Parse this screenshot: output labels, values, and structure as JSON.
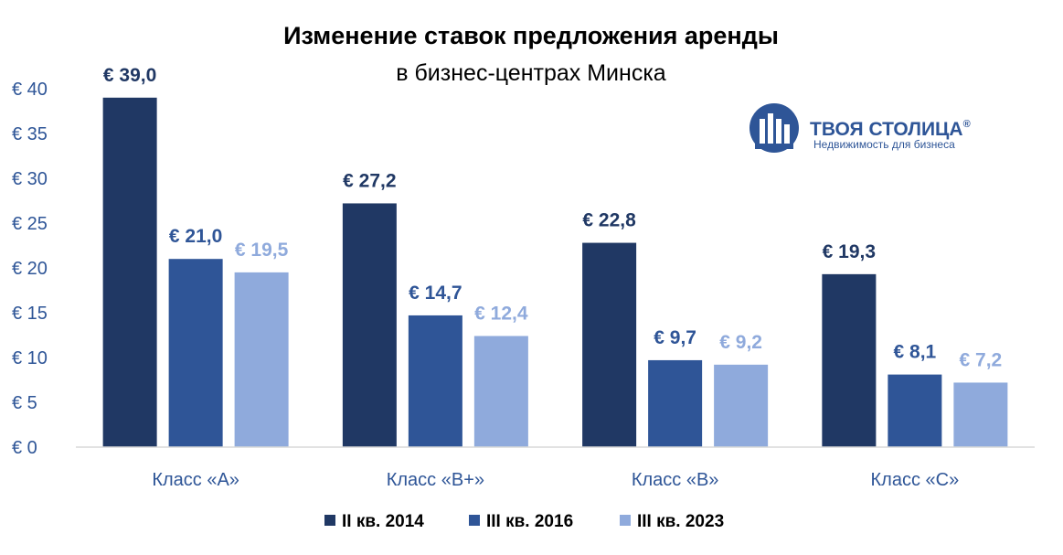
{
  "colors": {
    "series": [
      "#203864",
      "#2F5597",
      "#8FAADC"
    ],
    "labels": [
      "#203864",
      "#2F5597",
      "#8FAADC"
    ],
    "axis": "#D9D9D9",
    "tick_text": "#2E5597",
    "logo": "#2E5597"
  },
  "logo": {
    "name": "ТВОЯ СТОЛИЦА",
    "registered": "®",
    "tagline": "Недвижимость для бизнеса",
    "icon": "building-columns-icon"
  },
  "chart_data": {
    "type": "bar",
    "title": "Изменение ставок предложения аренды",
    "subtitle": "в бизнес-центрах Минска",
    "categories": [
      "Класс «А»",
      "Класс «В+»",
      "Класс «В»",
      "Класс «С»"
    ],
    "series": [
      {
        "name": "II кв. 2014",
        "values": [
          39.0,
          27.2,
          22.8,
          19.3
        ],
        "labels": [
          "€  39,0",
          "€  27,2",
          "€  22,8",
          "€  19,3"
        ]
      },
      {
        "name": "III кв. 2016",
        "values": [
          21.0,
          14.7,
          9.7,
          8.1
        ],
        "labels": [
          "€  21,0",
          "€  14,7",
          "€  9,7",
          "€  8,1"
        ]
      },
      {
        "name": "III кв. 2023",
        "values": [
          19.5,
          12.4,
          9.2,
          7.2
        ],
        "labels": [
          "€  19,5",
          "€  12,4",
          "€  9,2",
          "€  7,2"
        ]
      }
    ],
    "ylim": [
      0,
      40
    ],
    "yticks": [
      0,
      5,
      10,
      15,
      20,
      25,
      30,
      35,
      40
    ],
    "ytick_labels": [
      "€  0",
      "€  5",
      "€  10",
      "€  15",
      "€  20",
      "€  25",
      "€  30",
      "€  35",
      "€  40"
    ],
    "xlabel": "",
    "ylabel": "",
    "grid": false,
    "legend_position": "bottom"
  }
}
